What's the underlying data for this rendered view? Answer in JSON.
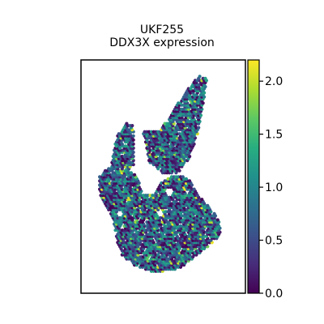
{
  "chart_data": {
    "type": "scatter",
    "title": "UKF255\nDDX3X expression",
    "title_lines": [
      "UKF255",
      "DDX3X expression"
    ],
    "xlabel": "",
    "ylabel": "",
    "colormap": "viridis",
    "color_range": [
      0.0,
      2.2
    ],
    "colorbar_ticks": [
      "0.0",
      "0.5",
      "1.0",
      "1.5",
      "2.0"
    ],
    "colorbar_tick_values": [
      0.0,
      0.5,
      1.0,
      1.5,
      2.0
    ],
    "axes_ticks": false,
    "grid": false,
    "legend": "colorbar-right",
    "x_range": [
      0,
      100
    ],
    "y_range": [
      0,
      140
    ],
    "tissue_regions": [
      {
        "name": "upper-left-lobe",
        "polygon": [
          [
            14,
            78
          ],
          [
            18,
            96
          ],
          [
            24,
            105
          ],
          [
            30,
            104
          ],
          [
            30,
            78
          ],
          [
            24,
            72
          ],
          [
            16,
            72
          ]
        ]
      },
      {
        "name": "upper-right-lobe",
        "polygon": [
          [
            36,
            100
          ],
          [
            48,
            100
          ],
          [
            56,
            112
          ],
          [
            66,
            126
          ],
          [
            74,
            136
          ],
          [
            80,
            134
          ],
          [
            78,
            118
          ],
          [
            74,
            98
          ],
          [
            68,
            82
          ],
          [
            60,
            72
          ],
          [
            50,
            72
          ],
          [
            40,
            80
          ]
        ]
      },
      {
        "name": "main-body",
        "polygon": [
          [
            6,
            70
          ],
          [
            12,
            76
          ],
          [
            26,
            74
          ],
          [
            32,
            70
          ],
          [
            36,
            58
          ],
          [
            44,
            58
          ],
          [
            48,
            66
          ],
          [
            56,
            70
          ],
          [
            64,
            70
          ],
          [
            70,
            66
          ],
          [
            74,
            58
          ],
          [
            82,
            50
          ],
          [
            88,
            42
          ],
          [
            90,
            34
          ],
          [
            86,
            28
          ],
          [
            78,
            22
          ],
          [
            70,
            16
          ],
          [
            62,
            10
          ],
          [
            52,
            8
          ],
          [
            40,
            8
          ],
          [
            30,
            12
          ],
          [
            22,
            18
          ],
          [
            18,
            28
          ],
          [
            16,
            40
          ],
          [
            10,
            50
          ],
          [
            6,
            60
          ]
        ]
      }
    ],
    "holes": [
      {
        "center": [
          48,
          46
        ],
        "radius": 2.5
      },
      {
        "center": [
          54,
          60
        ],
        "radius": 3
      },
      {
        "center": [
          20,
          46
        ],
        "radius": 2
      }
    ]
  }
}
